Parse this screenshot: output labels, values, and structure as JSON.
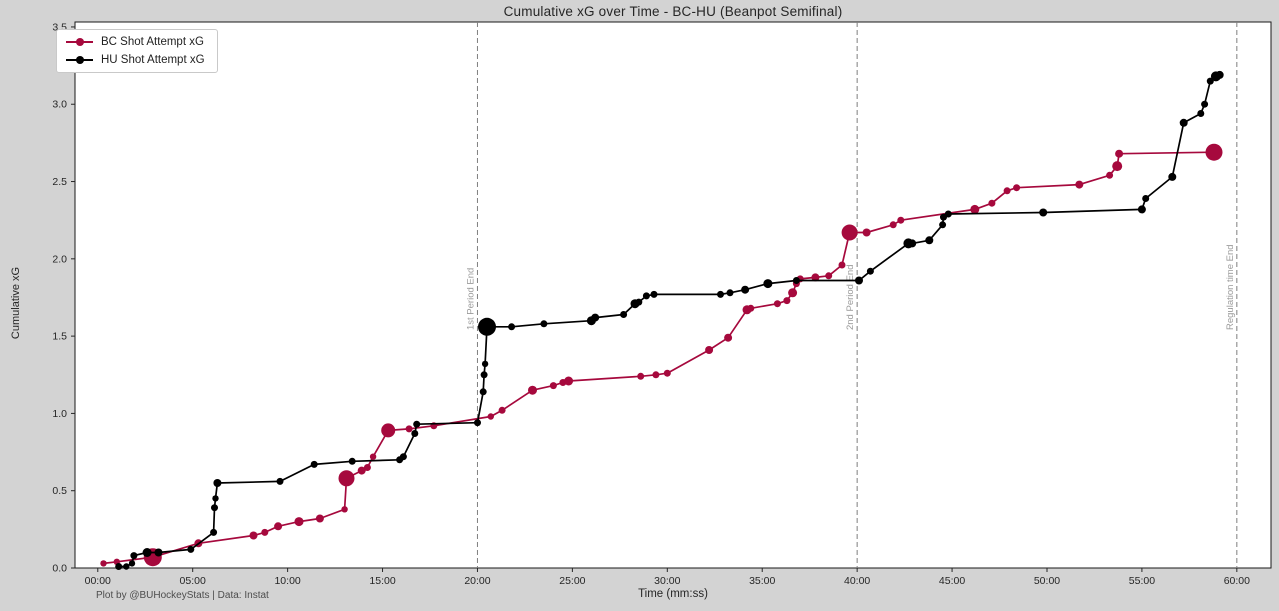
{
  "footer": "Plot by @BUHockeyStats | Data: Instat",
  "colors": {
    "figure_background": "#d3d3d3",
    "plot_background": "#ffffff",
    "bc_accent": "#a6093d",
    "hu_accent": "#000000",
    "period_line": "#7f7f7f",
    "period_label": "#9a9a9a",
    "spine": "#1a1a1a"
  },
  "chart_data": {
    "type": "line",
    "title": "Cumulative xG over Time - BC-HU (Beanpot Semifinal)",
    "xlabel": "Time (mm:ss)",
    "ylabel": "Cumulative xG",
    "grid": false,
    "legend_position": "upper left",
    "point_format": "[minutes, cumulative_xG, marker_radius_px]",
    "x_range": [
      -1.2,
      61.8
    ],
    "y_range": [
      0,
      3.532
    ],
    "x_ticks": [
      {
        "t": 0,
        "label": "00:00"
      },
      {
        "t": 5,
        "label": "05:00"
      },
      {
        "t": 10,
        "label": "10:00"
      },
      {
        "t": 15,
        "label": "15:00"
      },
      {
        "t": 20,
        "label": "20:00"
      },
      {
        "t": 25,
        "label": "25:00"
      },
      {
        "t": 30,
        "label": "30:00"
      },
      {
        "t": 35,
        "label": "35:00"
      },
      {
        "t": 40,
        "label": "40:00"
      },
      {
        "t": 45,
        "label": "45:00"
      },
      {
        "t": 50,
        "label": "50:00"
      },
      {
        "t": 55,
        "label": "55:00"
      },
      {
        "t": 60,
        "label": "60:00"
      }
    ],
    "y_ticks": [
      {
        "v": 0.0,
        "label": "0.0"
      },
      {
        "v": 0.5,
        "label": "0.5"
      },
      {
        "v": 1.0,
        "label": "1.0"
      },
      {
        "v": 1.5,
        "label": "1.5"
      },
      {
        "v": 2.0,
        "label": "2.0"
      },
      {
        "v": 2.5,
        "label": "2.5"
      },
      {
        "v": 3.0,
        "label": "3.0"
      },
      {
        "v": 3.5,
        "label": "3.5"
      }
    ],
    "vlines": [
      {
        "t": 20,
        "label": "1st Period End"
      },
      {
        "t": 40,
        "label": "2nd Period End"
      },
      {
        "t": 60,
        "label": "Regulation time End"
      }
    ],
    "series": [
      {
        "name": "BC Shot Attempt xG",
        "color": "#a6093d",
        "points": [
          [
            0.3,
            0.03,
            3.2
          ],
          [
            1.0,
            0.04,
            3.2
          ],
          [
            2.9,
            0.07,
            9
          ],
          [
            5.3,
            0.16,
            4
          ],
          [
            8.2,
            0.21,
            4
          ],
          [
            8.8,
            0.23,
            3.5
          ],
          [
            9.5,
            0.27,
            4
          ],
          [
            10.6,
            0.3,
            4.5
          ],
          [
            11.7,
            0.32,
            4
          ],
          [
            13.0,
            0.38,
            3.2
          ],
          [
            13.1,
            0.58,
            8
          ],
          [
            13.9,
            0.63,
            4
          ],
          [
            14.2,
            0.65,
            3.5
          ],
          [
            14.5,
            0.72,
            3.2
          ],
          [
            15.3,
            0.89,
            7
          ],
          [
            16.4,
            0.9,
            3.5
          ],
          [
            17.7,
            0.92,
            3.5
          ],
          [
            20.7,
            0.98,
            3.2
          ],
          [
            21.3,
            1.02,
            3.5
          ],
          [
            22.9,
            1.15,
            4.5
          ],
          [
            24.0,
            1.18,
            3.5
          ],
          [
            24.5,
            1.2,
            3.5
          ],
          [
            24.8,
            1.21,
            4.5
          ],
          [
            28.6,
            1.24,
            3.5
          ],
          [
            29.4,
            1.25,
            3.5
          ],
          [
            30.0,
            1.26,
            3.5
          ],
          [
            32.2,
            1.41,
            4
          ],
          [
            33.2,
            1.49,
            4
          ],
          [
            34.2,
            1.67,
            4.5
          ],
          [
            34.4,
            1.68,
            3.5
          ],
          [
            35.8,
            1.71,
            3.5
          ],
          [
            36.3,
            1.73,
            3.5
          ],
          [
            36.6,
            1.78,
            4.5
          ],
          [
            36.8,
            1.84,
            3.5
          ],
          [
            37.0,
            1.87,
            3.5
          ],
          [
            37.8,
            1.88,
            4
          ],
          [
            38.5,
            1.89,
            3.5
          ],
          [
            39.2,
            1.96,
            3.5
          ],
          [
            39.6,
            2.17,
            8
          ],
          [
            40.5,
            2.17,
            4
          ],
          [
            41.9,
            2.22,
            3.5
          ],
          [
            42.3,
            2.25,
            3.5
          ],
          [
            46.2,
            2.32,
            4.5
          ],
          [
            47.1,
            2.36,
            3.5
          ],
          [
            47.9,
            2.44,
            3.5
          ],
          [
            48.4,
            2.46,
            3.5
          ],
          [
            51.7,
            2.48,
            4
          ],
          [
            53.3,
            2.54,
            3.5
          ],
          [
            53.7,
            2.6,
            5
          ],
          [
            53.8,
            2.68,
            4
          ],
          [
            58.8,
            2.69,
            8.5
          ]
        ]
      },
      {
        "name": "HU Shot Attempt xG",
        "color": "#000000",
        "points": [
          [
            1.1,
            0.01,
            3.5
          ],
          [
            1.5,
            0.01,
            3.2
          ],
          [
            1.8,
            0.03,
            3.2
          ],
          [
            1.9,
            0.08,
            3.5
          ],
          [
            2.6,
            0.1,
            4.5
          ],
          [
            3.2,
            0.1,
            4
          ],
          [
            4.9,
            0.12,
            3.5
          ],
          [
            6.1,
            0.23,
            3.5
          ],
          [
            6.15,
            0.39,
            3.5
          ],
          [
            6.2,
            0.45,
            3.2
          ],
          [
            6.3,
            0.55,
            4
          ],
          [
            9.6,
            0.56,
            3.5
          ],
          [
            11.4,
            0.67,
            3.5
          ],
          [
            13.4,
            0.69,
            3.5
          ],
          [
            15.9,
            0.7,
            3.5
          ],
          [
            16.1,
            0.72,
            3.5
          ],
          [
            16.7,
            0.87,
            3.5
          ],
          [
            16.8,
            0.93,
            3.5
          ],
          [
            20.0,
            0.94,
            3.5
          ],
          [
            20.3,
            1.14,
            3.5
          ],
          [
            20.35,
            1.25,
            3.5
          ],
          [
            20.4,
            1.32,
            3.2
          ],
          [
            20.5,
            1.56,
            9
          ],
          [
            21.8,
            1.56,
            3.5
          ],
          [
            23.5,
            1.58,
            3.5
          ],
          [
            26.0,
            1.6,
            4.5
          ],
          [
            26.2,
            1.62,
            4
          ],
          [
            27.7,
            1.64,
            3.5
          ],
          [
            28.3,
            1.71,
            4.5
          ],
          [
            28.5,
            1.72,
            3.5
          ],
          [
            28.9,
            1.76,
            3.5
          ],
          [
            29.3,
            1.77,
            3.5
          ],
          [
            32.8,
            1.77,
            3.5
          ],
          [
            33.3,
            1.78,
            3.5
          ],
          [
            34.1,
            1.8,
            4
          ],
          [
            35.3,
            1.84,
            4.5
          ],
          [
            36.8,
            1.86,
            3.5
          ],
          [
            40.1,
            1.86,
            4
          ],
          [
            40.7,
            1.92,
            3.5
          ],
          [
            42.7,
            2.1,
            5
          ],
          [
            42.9,
            2.1,
            4
          ],
          [
            43.8,
            2.12,
            4
          ],
          [
            44.5,
            2.22,
            3.5
          ],
          [
            44.55,
            2.27,
            3.5
          ],
          [
            44.8,
            2.29,
            3.5
          ],
          [
            49.8,
            2.3,
            4
          ],
          [
            55.0,
            2.32,
            4
          ],
          [
            55.2,
            2.39,
            3.5
          ],
          [
            56.6,
            2.53,
            4
          ],
          [
            57.2,
            2.88,
            4
          ],
          [
            58.1,
            2.94,
            3.5
          ],
          [
            58.3,
            3.0,
            3.5
          ],
          [
            58.6,
            3.15,
            3.5
          ],
          [
            58.9,
            3.18,
            5
          ],
          [
            59.1,
            3.19,
            4
          ]
        ]
      }
    ]
  }
}
